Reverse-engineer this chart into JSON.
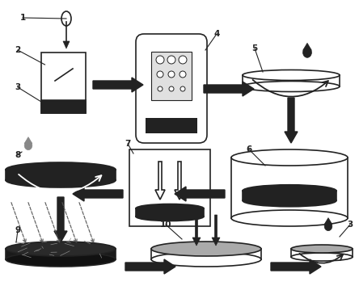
{
  "bg_color": "#ffffff",
  "outline_color": "#222222",
  "fill_white": "#ffffff",
  "fill_black": "#222222",
  "fill_gray": "#aaaaaa",
  "fill_lgray": "#e0e0e0",
  "label_fontsize": 7.5,
  "lw": 1.2
}
